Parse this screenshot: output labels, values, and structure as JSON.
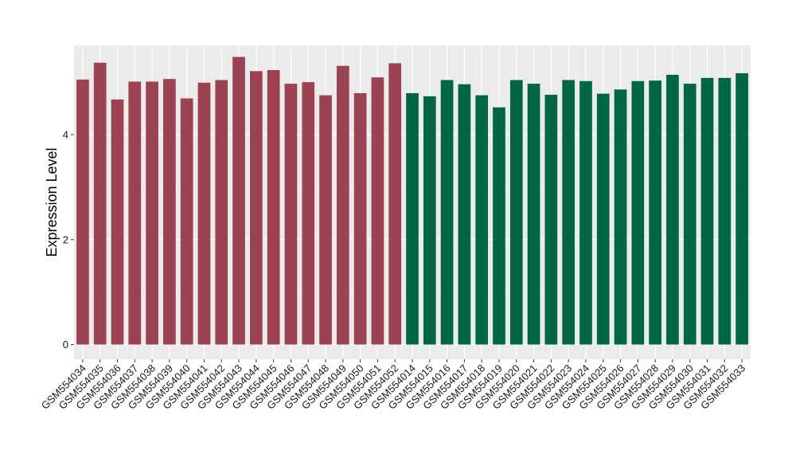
{
  "chart_data": {
    "type": "bar",
    "title": "",
    "xlabel": "",
    "ylabel": "Expression Level",
    "ylim": [
      -0.28,
      5.7
    ],
    "yticks": [
      0,
      2,
      4
    ],
    "grid": true,
    "background": "#ebebeb",
    "categories": [
      "GSM554034",
      "GSM554035",
      "GSM554036",
      "GSM554037",
      "GSM554038",
      "GSM554039",
      "GSM554040",
      "GSM554041",
      "GSM554042",
      "GSM554043",
      "GSM554044",
      "GSM554045",
      "GSM554046",
      "GSM554047",
      "GSM554048",
      "GSM554049",
      "GSM554050",
      "GSM554051",
      "GSM554052",
      "GSM554014",
      "GSM554015",
      "GSM554016",
      "GSM554017",
      "GSM554018",
      "GSM554019",
      "GSM554020",
      "GSM554021",
      "GSM554022",
      "GSM554023",
      "GSM554024",
      "GSM554025",
      "GSM554026",
      "GSM554027",
      "GSM554028",
      "GSM554029",
      "GSM554030",
      "GSM554031",
      "GSM554032",
      "GSM554033"
    ],
    "values": [
      5.05,
      5.37,
      4.67,
      5.01,
      5.01,
      5.06,
      4.69,
      4.99,
      5.04,
      5.48,
      5.21,
      5.23,
      4.97,
      5.0,
      4.75,
      5.31,
      4.79,
      5.09,
      5.36,
      4.79,
      4.73,
      5.04,
      4.96,
      4.75,
      4.52,
      5.04,
      4.97,
      4.76,
      5.04,
      5.02,
      4.78,
      4.86,
      5.02,
      5.03,
      5.14,
      4.97,
      5.08,
      5.08,
      5.17
    ],
    "bar_colors": [
      "#9b4352",
      "#9b4352",
      "#9b4352",
      "#9b4352",
      "#9b4352",
      "#9b4352",
      "#9b4352",
      "#9b4352",
      "#9b4352",
      "#9b4352",
      "#9b4352",
      "#9b4352",
      "#9b4352",
      "#9b4352",
      "#9b4352",
      "#9b4352",
      "#9b4352",
      "#9b4352",
      "#9b4352",
      "#006644",
      "#006644",
      "#006644",
      "#006644",
      "#006644",
      "#006644",
      "#006644",
      "#006644",
      "#006644",
      "#006644",
      "#006644",
      "#006644",
      "#006644",
      "#006644",
      "#006644",
      "#006644",
      "#006644",
      "#006644",
      "#006644",
      "#006644"
    ]
  }
}
